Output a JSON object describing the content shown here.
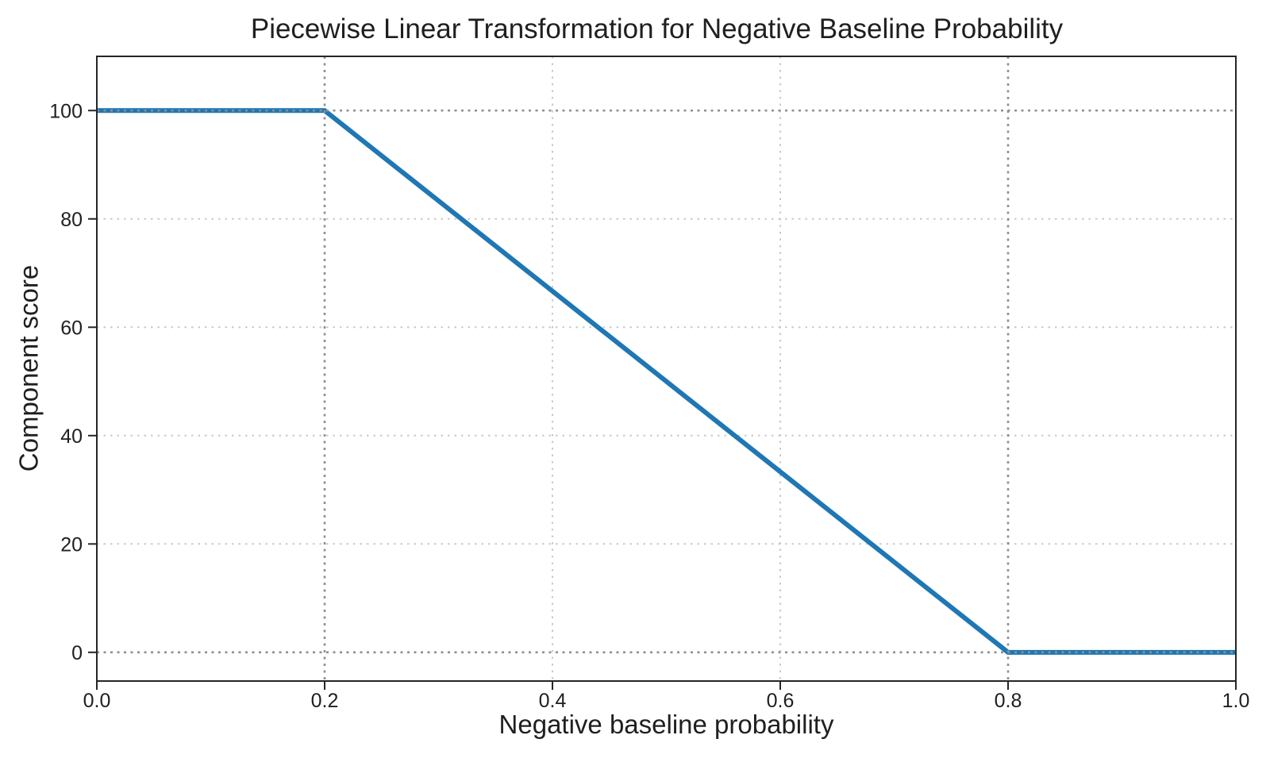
{
  "figure": {
    "background": "#ffffff"
  },
  "chart_data": {
    "type": "line",
    "title": "Piecewise Linear Transformation for Negative Baseline Probability",
    "xlabel": "Negative baseline probability",
    "ylabel": "Component score",
    "series": [
      {
        "name": "component-score-curve",
        "x": [
          0.0,
          0.2,
          0.8,
          1.0
        ],
        "y": [
          100,
          100,
          0,
          0
        ],
        "color": "#1f77b4",
        "linewidth": 6
      }
    ],
    "xlim": [
      0.0,
      1.0
    ],
    "ylim": [
      -5.3,
      110.0
    ],
    "xticks": [
      0.0,
      0.2,
      0.4,
      0.6,
      0.8,
      1.0
    ],
    "xtick_labels": [
      "0.0",
      "0.2",
      "0.4",
      "0.6",
      "0.8",
      "1.0"
    ],
    "yticks": [
      0,
      20,
      40,
      60,
      80,
      100
    ],
    "ytick_labels": [
      "0",
      "20",
      "40",
      "60",
      "80",
      "100"
    ],
    "grid": {
      "visible": true,
      "style": "dotted",
      "color": "#c9c9c9"
    },
    "reference_lines": {
      "horizontal": [
        0,
        100
      ],
      "vertical": [
        0.2,
        0.8
      ],
      "style": "dotted",
      "color": "#8f8f8f"
    },
    "legend": {
      "visible": false
    },
    "axis_color": "#262626",
    "text_color": "#1f1f1f"
  }
}
